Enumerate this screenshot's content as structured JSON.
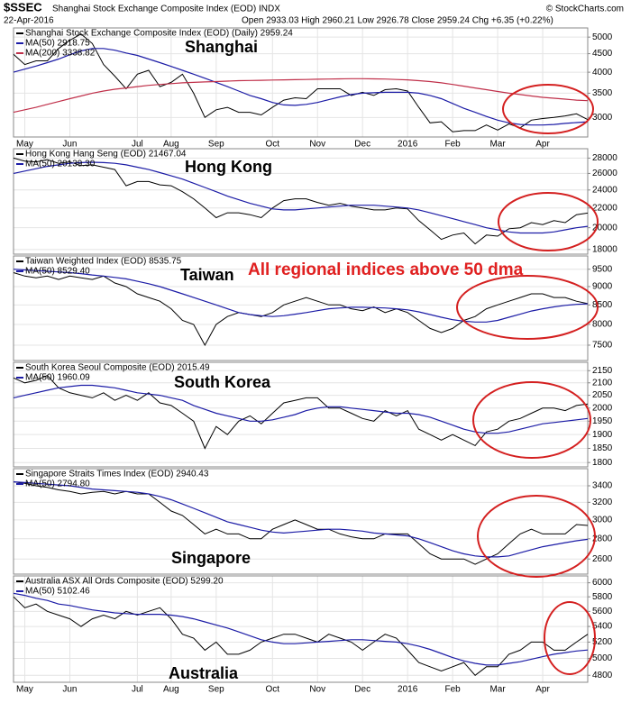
{
  "header": {
    "symbol": "$SSEC",
    "title": "Shanghai Stock Exchange Composite Index (EOD) INDX",
    "date": "22-Apr-2016",
    "quote": "Open 2933.03 High 2960.21 Low 2926.78 Close 2959.24 Chg +6.35 (+0.22%)",
    "source": "© StockCharts.com"
  },
  "chart_data": [
    {
      "type": "line",
      "label": "Shanghai",
      "log_scale": true,
      "grid": true,
      "categories": [
        null,
        "May",
        null,
        null,
        null,
        "Jun",
        null,
        null,
        null,
        null,
        null,
        "Jul",
        null,
        null,
        "Aug",
        null,
        null,
        null,
        "Sep",
        null,
        null,
        null,
        null,
        "Oct",
        null,
        null,
        null,
        "Nov",
        null,
        null,
        null,
        "Dec",
        null,
        null,
        null,
        "2016",
        null,
        null,
        null,
        "Feb",
        null,
        null,
        null,
        "Mar",
        null,
        null,
        null,
        "Apr",
        null,
        null,
        null,
        null
      ],
      "series": [
        {
          "name": "Shanghai Stock Exchange Composite Index (EOD) (Daily) 2959.24",
          "color": "#000000",
          "values": [
            4480,
            4200,
            4300,
            4300,
            4650,
            4900,
            5100,
            4800,
            4200,
            3900,
            3600,
            3950,
            4050,
            3650,
            3750,
            3950,
            3500,
            3000,
            3150,
            3200,
            3100,
            3100,
            3050,
            3200,
            3350,
            3400,
            3380,
            3600,
            3600,
            3600,
            3450,
            3520,
            3450,
            3580,
            3600,
            3550,
            3200,
            2900,
            2920,
            2740,
            2760,
            2760,
            2860,
            2770,
            2880,
            2810,
            2950,
            2980,
            3000,
            3030,
            3070,
            2959.24
          ]
        },
        {
          "name": "MA(50) 2918.75",
          "color": "#1c1ca6",
          "values": [
            4000,
            4080,
            4160,
            4250,
            4350,
            4470,
            4580,
            4650,
            4650,
            4600,
            4520,
            4450,
            4350,
            4250,
            4150,
            4050,
            3950,
            3850,
            3750,
            3650,
            3550,
            3450,
            3380,
            3300,
            3250,
            3240,
            3260,
            3300,
            3360,
            3420,
            3470,
            3500,
            3510,
            3520,
            3520,
            3520,
            3500,
            3450,
            3380,
            3280,
            3180,
            3100,
            3020,
            2950,
            2900,
            2870,
            2860,
            2860,
            2870,
            2890,
            2905,
            2918.75
          ]
        },
        {
          "name": "MA(200) 3338.82",
          "color": "#c0304a",
          "values": [
            3100,
            3150,
            3200,
            3260,
            3320,
            3380,
            3440,
            3500,
            3550,
            3590,
            3620,
            3650,
            3680,
            3700,
            3720,
            3740,
            3750,
            3760,
            3770,
            3780,
            3790,
            3795,
            3800,
            3805,
            3810,
            3815,
            3820,
            3825,
            3830,
            3835,
            3840,
            3840,
            3835,
            3830,
            3820,
            3810,
            3790,
            3770,
            3740,
            3700,
            3660,
            3620,
            3580,
            3540,
            3500,
            3470,
            3440,
            3410,
            3390,
            3370,
            3350,
            3338.82
          ]
        }
      ],
      "ylim": [
        2650,
        5300
      ],
      "yticks": [
        5000,
        4500,
        4000,
        3500,
        3000
      ]
    },
    {
      "type": "line",
      "label": "Hong Kong",
      "log_scale": true,
      "grid": true,
      "series": [
        {
          "name": "Hong Kong Hang Seng (EOD) 21467.04",
          "color": "#000000",
          "values": [
            28000,
            27600,
            27500,
            27800,
            27300,
            27500,
            27000,
            27100,
            26800,
            26500,
            24500,
            25000,
            25000,
            24600,
            24500,
            23800,
            23000,
            22000,
            21000,
            21500,
            21500,
            21300,
            21000,
            22000,
            22800,
            23000,
            23000,
            22600,
            22300,
            22500,
            22200,
            22000,
            21800,
            21800,
            22000,
            21900,
            20700,
            19800,
            18900,
            19300,
            19500,
            18500,
            19300,
            19200,
            19900,
            20000,
            20500,
            20300,
            20700,
            20500,
            21300,
            21467.04
          ]
        },
        {
          "name": "MA(50) 20139.30",
          "color": "#1c1ca6",
          "values": [
            26000,
            26300,
            26600,
            26900,
            27100,
            27300,
            27400,
            27450,
            27400,
            27300,
            27100,
            26800,
            26500,
            26100,
            25700,
            25300,
            24800,
            24300,
            23800,
            23300,
            22900,
            22500,
            22200,
            21900,
            21800,
            21800,
            21900,
            22000,
            22100,
            22200,
            22300,
            22300,
            22300,
            22200,
            22100,
            22000,
            21800,
            21500,
            21200,
            20900,
            20600,
            20300,
            20000,
            19800,
            19600,
            19500,
            19500,
            19500,
            19600,
            19800,
            20000,
            20139.3
          ]
        }
      ],
      "ylim": [
        17600,
        29300
      ],
      "yticks": [
        28000,
        26000,
        24000,
        22000,
        20000,
        18000
      ]
    },
    {
      "type": "line",
      "label": "Taiwan",
      "annotation": "All regional indices above 50 dma",
      "log_scale": true,
      "grid": true,
      "series": [
        {
          "name": "Taiwan Weighted Index (EOD) 8535.75",
          "color": "#000000",
          "values": [
            9400,
            9300,
            9250,
            9300,
            9200,
            9300,
            9250,
            9200,
            9300,
            9100,
            9000,
            8800,
            8700,
            8600,
            8400,
            8100,
            8000,
            7500,
            8000,
            8200,
            8300,
            8250,
            8200,
            8300,
            8500,
            8600,
            8700,
            8600,
            8500,
            8500,
            8400,
            8350,
            8450,
            8300,
            8400,
            8300,
            8100,
            7900,
            7800,
            7900,
            8100,
            8200,
            8400,
            8500,
            8600,
            8700,
            8800,
            8800,
            8700,
            8700,
            8600,
            8535.75
          ]
        },
        {
          "name": "MA(50) 8529.40",
          "color": "#1c1ca6",
          "values": [
            9500,
            9480,
            9460,
            9440,
            9420,
            9400,
            9370,
            9330,
            9300,
            9260,
            9220,
            9150,
            9080,
            9000,
            8900,
            8800,
            8700,
            8600,
            8500,
            8400,
            8300,
            8250,
            8220,
            8200,
            8220,
            8260,
            8300,
            8350,
            8400,
            8420,
            8440,
            8440,
            8430,
            8420,
            8400,
            8370,
            8320,
            8250,
            8180,
            8120,
            8080,
            8060,
            8060,
            8100,
            8180,
            8260,
            8340,
            8400,
            8450,
            8490,
            8515,
            8529.4
          ]
        }
      ],
      "ylim": [
        7150,
        9900
      ],
      "yticks": [
        9500,
        9000,
        8500,
        8000,
        7500
      ]
    },
    {
      "type": "line",
      "label": "South Korea",
      "log_scale": true,
      "grid": true,
      "series": [
        {
          "name": "South Korea Seoul Composite (EOD) 2015.49",
          "color": "#000000",
          "values": [
            2120,
            2100,
            2110,
            2130,
            2080,
            2060,
            2050,
            2040,
            2060,
            2030,
            2050,
            2030,
            2060,
            2020,
            2010,
            1980,
            1950,
            1850,
            1930,
            1900,
            1950,
            1970,
            1940,
            1980,
            2020,
            2030,
            2040,
            2040,
            2000,
            2000,
            1980,
            1960,
            1950,
            1990,
            1970,
            1990,
            1920,
            1900,
            1880,
            1900,
            1880,
            1860,
            1910,
            1920,
            1950,
            1960,
            1980,
            2000,
            2000,
            1990,
            2010,
            2015.49
          ]
        },
        {
          "name": "MA(50) 1960.09",
          "color": "#1c1ca6",
          "values": [
            2040,
            2050,
            2060,
            2070,
            2080,
            2085,
            2090,
            2090,
            2085,
            2080,
            2070,
            2060,
            2055,
            2050,
            2040,
            2030,
            2010,
            1995,
            1980,
            1970,
            1960,
            1950,
            1950,
            1955,
            1965,
            1975,
            1990,
            2000,
            2005,
            2005,
            2000,
            1995,
            1990,
            1985,
            1980,
            1980,
            1975,
            1965,
            1950,
            1935,
            1920,
            1910,
            1905,
            1905,
            1910,
            1920,
            1930,
            1940,
            1945,
            1950,
            1955,
            1960.09
          ]
        }
      ],
      "ylim": [
        1785,
        2185
      ],
      "yticks": [
        2150,
        2100,
        2050,
        2000,
        1950,
        1900,
        1850,
        1800
      ]
    },
    {
      "type": "line",
      "label": "Singapore",
      "log_scale": true,
      "grid": true,
      "series": [
        {
          "name": "Singapore Straits Times Index (EOD) 2940.43",
          "color": "#000000",
          "values": [
            3450,
            3430,
            3400,
            3380,
            3350,
            3330,
            3300,
            3320,
            3330,
            3300,
            3330,
            3300,
            3300,
            3200,
            3100,
            3050,
            2950,
            2850,
            2900,
            2850,
            2850,
            2800,
            2800,
            2900,
            2950,
            3000,
            2950,
            2900,
            2900,
            2850,
            2820,
            2800,
            2800,
            2850,
            2850,
            2850,
            2750,
            2650,
            2600,
            2600,
            2600,
            2550,
            2600,
            2650,
            2750,
            2850,
            2900,
            2850,
            2850,
            2850,
            2950,
            2940.43
          ]
        },
        {
          "name": "MA(50) 2794.80",
          "color": "#1c1ca6",
          "values": [
            3450,
            3440,
            3430,
            3420,
            3410,
            3400,
            3380,
            3360,
            3350,
            3340,
            3330,
            3320,
            3300,
            3270,
            3230,
            3180,
            3130,
            3080,
            3030,
            2980,
            2950,
            2920,
            2890,
            2870,
            2860,
            2870,
            2880,
            2890,
            2900,
            2900,
            2890,
            2880,
            2860,
            2850,
            2840,
            2830,
            2800,
            2760,
            2720,
            2680,
            2650,
            2630,
            2620,
            2620,
            2630,
            2660,
            2690,
            2720,
            2740,
            2760,
            2780,
            2794.8
          ]
        }
      ],
      "ylim": [
        2460,
        3620
      ],
      "yticks": [
        3400,
        3200,
        3000,
        2800,
        2600
      ]
    },
    {
      "type": "line",
      "label": "Australia",
      "log_scale": true,
      "grid": true,
      "categories": [
        null,
        "May",
        null,
        null,
        null,
        "Jun",
        null,
        null,
        null,
        null,
        null,
        "Jul",
        null,
        null,
        "Aug",
        null,
        null,
        null,
        "Sep",
        null,
        null,
        null,
        null,
        "Oct",
        null,
        null,
        null,
        "Nov",
        null,
        null,
        null,
        "Dec",
        null,
        null,
        null,
        "2016",
        null,
        null,
        null,
        "Feb",
        null,
        null,
        null,
        "Mar",
        null,
        null,
        null,
        "Apr",
        null,
        null,
        null,
        null
      ],
      "series": [
        {
          "name": "Australia ASX All Ords Composite (EOD) 5299.20",
          "color": "#000000",
          "values": [
            5800,
            5650,
            5700,
            5600,
            5550,
            5500,
            5400,
            5500,
            5550,
            5500,
            5600,
            5550,
            5600,
            5650,
            5500,
            5300,
            5250,
            5100,
            5200,
            5050,
            5050,
            5100,
            5200,
            5250,
            5300,
            5300,
            5250,
            5200,
            5300,
            5250,
            5200,
            5100,
            5200,
            5300,
            5250,
            5100,
            4950,
            4900,
            4850,
            4900,
            4950,
            4800,
            4900,
            4900,
            5050,
            5100,
            5200,
            5200,
            5100,
            5100,
            5200,
            5299.2
          ]
        },
        {
          "name": "MA(50) 5102.46",
          "color": "#1c1ca6",
          "values": [
            5850,
            5820,
            5780,
            5750,
            5700,
            5680,
            5650,
            5620,
            5600,
            5580,
            5570,
            5560,
            5560,
            5560,
            5550,
            5530,
            5500,
            5460,
            5420,
            5380,
            5330,
            5280,
            5230,
            5200,
            5180,
            5180,
            5190,
            5200,
            5210,
            5220,
            5230,
            5230,
            5220,
            5210,
            5200,
            5180,
            5150,
            5110,
            5060,
            5010,
            4970,
            4940,
            4920,
            4920,
            4940,
            4960,
            4990,
            5020,
            5050,
            5070,
            5090,
            5102.46
          ]
        }
      ],
      "ylim": [
        4720,
        6100
      ],
      "yticks": [
        6000,
        5800,
        5600,
        5400,
        5200,
        5000,
        4800
      ]
    }
  ]
}
